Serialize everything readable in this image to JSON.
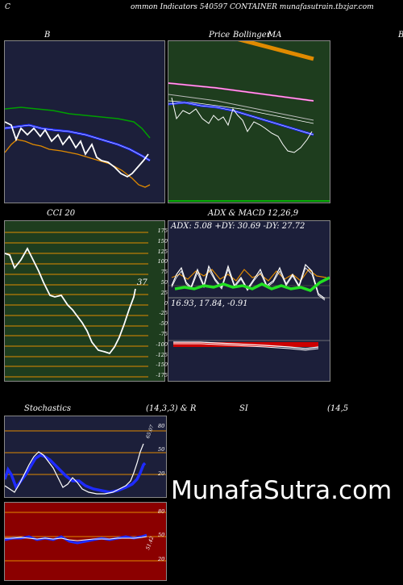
{
  "header": {
    "left": "C",
    "title": "ommon  Indicators 540597 CONTAINER munafasutrain.tbzjar.com"
  },
  "bollinger": {
    "label": "B"
  },
  "price_ma": {
    "label_price": "Price",
    "label_bands": "Bollinger",
    "label_ma": "MA",
    "corner": "B"
  },
  "cci": {
    "title": "CCI 20",
    "current": "37",
    "levels": [
      "175",
      "150",
      "125",
      "100",
      "75",
      "50",
      "25",
      "0",
      "-25",
      "-50",
      "-75",
      "-100",
      "-125",
      "-150",
      "-175"
    ]
  },
  "adx_macd": {
    "title": "ADX  & MACD 12,26,9",
    "adx_line": "ADX: 5.08  +DY: 30.69 -DY: 27.72",
    "macd_line": "16.93,  17.84,  -0.91"
  },
  "stochastics": {
    "title": "Stochastics",
    "params": "(14,3,3) & R",
    "levels": [
      "80",
      "50",
      "20"
    ],
    "current": "65.07"
  },
  "rsi": {
    "title": "SI",
    "params": "(14,5",
    "levels": [
      "80",
      "50",
      "20"
    ],
    "current": "51.42"
  },
  "watermark": "MunafaSutra.com",
  "colors": {
    "bollinger_bg": "#1c1f3a",
    "price_bg": "#1e3d1e",
    "cci_bg": "#1e3d1e",
    "adx_bg": "#1c1f3a",
    "stoch_bg": "#1c1f3a",
    "rsi_bg": "#8b0000",
    "orange": "#e08a00",
    "blue": "#1e2bff",
    "green": "#00b000"
  }
}
